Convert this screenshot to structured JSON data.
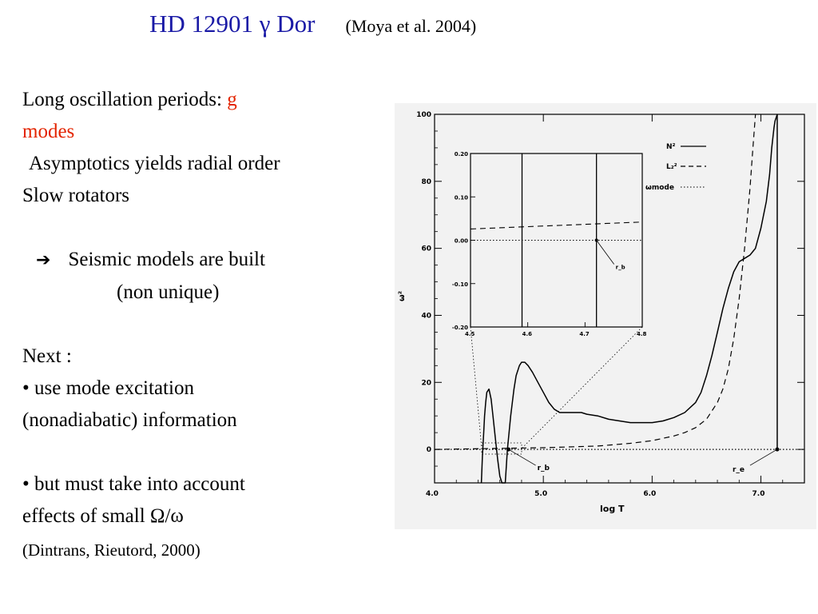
{
  "slide": {
    "title": "HD 12901 γ Dor",
    "citation": "(Moya et al. 2004)",
    "lines": {
      "l1": "Long oscillation periods: ",
      "l1_red": "g",
      "l2_red": "modes",
      "l3": "Asymptotics yields  radial order",
      "l4": "Slow rotators",
      "l5_arrow": "➔",
      "l5": "Seismic models  are built",
      "l6": "(non unique)",
      "l7": "Next :",
      "l8": "• use mode excitation",
      "l9": "(nonadiabatic)  information",
      "l10": "• but  must  take into account",
      "l11": "effects of small Ω/ω",
      "l12": "(Dintrans, Rieutord, 2000)"
    }
  },
  "chart_data": {
    "type": "line",
    "xlabel": "log T",
    "ylabel": "ω²",
    "xlim": [
      4.0,
      7.4
    ],
    "ylim": [
      -10,
      100
    ],
    "xticks": [
      "4.0",
      "5.0",
      "6.0",
      "7.0"
    ],
    "yticks": [
      "0",
      "20",
      "40",
      "60",
      "80",
      "100"
    ],
    "legend": [
      "N²",
      "L₂²",
      "ωmode"
    ],
    "annotations": [
      "r_b",
      "r_e"
    ],
    "series": [
      {
        "name": "N²",
        "style": "solid",
        "x": [
          4.43,
          4.44,
          4.45,
          4.46,
          4.47,
          4.48,
          4.5,
          4.52,
          4.53,
          4.55,
          4.57,
          4.58,
          4.6,
          4.62,
          4.65,
          4.67,
          4.7,
          4.73,
          4.75,
          4.78,
          4.8,
          4.83,
          4.86,
          4.9,
          4.95,
          5.0,
          5.05,
          5.1,
          5.15,
          5.2,
          5.3,
          5.35,
          5.4,
          5.5,
          5.6,
          5.7,
          5.8,
          5.9,
          6.0,
          6.1,
          6.2,
          6.3,
          6.4,
          6.45,
          6.5,
          6.55,
          6.6,
          6.65,
          6.7,
          6.75,
          6.8,
          6.85,
          6.9,
          6.95,
          7.0,
          7.05,
          7.08,
          7.1,
          7.12,
          7.13,
          7.14,
          7.15
        ],
        "y": [
          -10,
          -2,
          4,
          10,
          14,
          17,
          18,
          15,
          12,
          6,
          0,
          -3,
          -8,
          -10,
          -10,
          0,
          10,
          18,
          22,
          25,
          26,
          26,
          25,
          23,
          20,
          17,
          14,
          12,
          11,
          11,
          11,
          11,
          10.5,
          10,
          9,
          8.5,
          8,
          8,
          8,
          8.5,
          9.5,
          11,
          14,
          17,
          22,
          28,
          35,
          42,
          48,
          53,
          56,
          57,
          58,
          60,
          66,
          74,
          82,
          90,
          96,
          98,
          99,
          100
        ]
      },
      {
        "name": "L₂²",
        "style": "dashed",
        "x": [
          4.0,
          5.0,
          5.5,
          5.8,
          6.0,
          6.2,
          6.3,
          6.4,
          6.5,
          6.6,
          6.65,
          6.7,
          6.75,
          6.8,
          6.85,
          6.9,
          6.92,
          6.95
        ],
        "y": [
          0,
          0.5,
          1,
          1.8,
          2.6,
          4,
          5,
          6.5,
          9,
          14,
          18,
          24,
          33,
          45,
          60,
          78,
          87,
          100
        ]
      },
      {
        "name": "ωmode",
        "style": "dotted",
        "x": [
          4.0,
          7.4
        ],
        "y": [
          0,
          0
        ]
      }
    ],
    "inset": {
      "xlim": [
        4.5,
        4.8
      ],
      "ylim": [
        -0.2,
        0.2
      ],
      "xticks": [
        "4.5",
        "4.6",
        "4.7",
        "4.8"
      ],
      "yticks": [
        "0.20",
        "0.10",
        "0.00",
        "-0.10",
        "-0.20"
      ],
      "vlines": [
        4.59,
        4.72
      ],
      "series": [
        {
          "name": "L₂²",
          "style": "dashed",
          "x": [
            4.5,
            4.8
          ],
          "y": [
            0.026,
            0.042
          ]
        },
        {
          "name": "ωmode",
          "style": "dotted",
          "x": [
            4.5,
            4.8
          ],
          "y": [
            0.0,
            0.0
          ]
        }
      ],
      "annotation": "r_b"
    }
  }
}
